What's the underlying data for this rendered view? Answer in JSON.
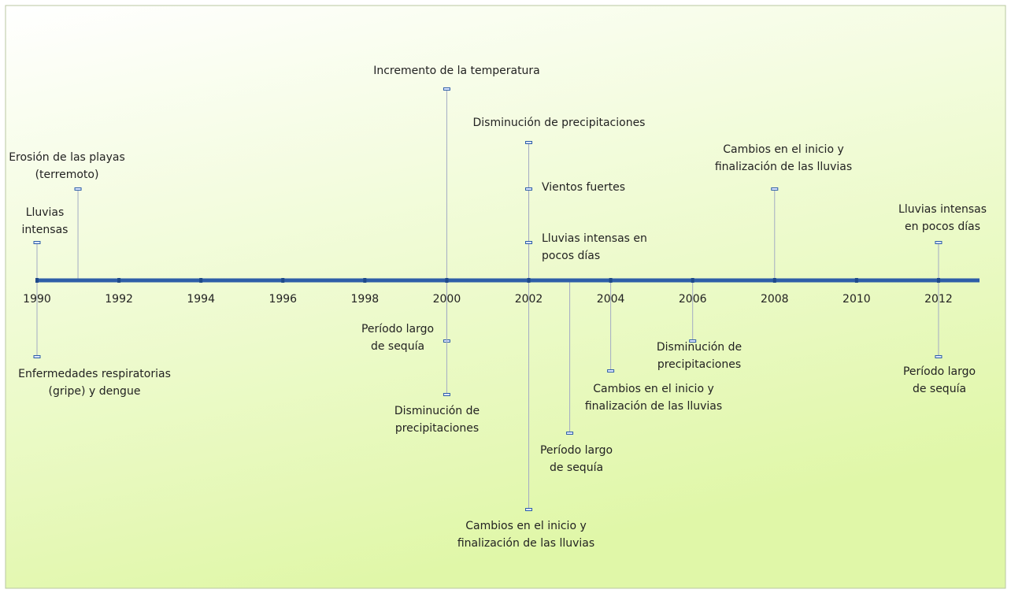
{
  "chart_data": {
    "type": "timeline",
    "xlim": [
      1990,
      2013
    ],
    "xticks": [
      1990,
      1992,
      1994,
      1996,
      1998,
      2000,
      2002,
      2004,
      2006,
      2008,
      2010,
      2012
    ],
    "color": "#2e5ea8",
    "events": [
      {
        "year": 1990,
        "label": [
          "Lluvias",
          "intensas"
        ]
      },
      {
        "year": 1991,
        "label": [
          "Erosión de las playas",
          "(terremoto)"
        ]
      },
      {
        "year": 2000,
        "label": [
          "Incremento de la temperatura"
        ]
      },
      {
        "year": 2002,
        "label": [
          "Disminución de precipitaciones"
        ]
      },
      {
        "year": 2002,
        "label": [
          "Vientos fuertes"
        ]
      },
      {
        "year": 2002,
        "label": [
          "Lluvias intensas en",
          "pocos días"
        ]
      },
      {
        "year": 2008,
        "label": [
          "Cambios en el inicio y",
          "finalización  de las lluvias"
        ]
      },
      {
        "year": 2012,
        "label": [
          "Lluvias intensas",
          "en pocos días"
        ]
      },
      {
        "year": 1990,
        "label": [
          "Enfermedades respiratorias",
          "(gripe) y dengue"
        ]
      },
      {
        "year": 2000,
        "label": [
          "Período largo",
          "de sequía"
        ]
      },
      {
        "year": 2000,
        "label": [
          "Disminución de",
          "precipitaciones"
        ]
      },
      {
        "year": 2002,
        "label": [
          "Cambios en el inicio y",
          "finalización  de las lluvias"
        ]
      },
      {
        "year": 2003,
        "label": [
          "Período largo",
          "de sequía"
        ]
      },
      {
        "year": 2004,
        "label": [
          "Cambios en el inicio y",
          "finalización  de las lluvias"
        ]
      },
      {
        "year": 2006,
        "label": [
          "Disminución de",
          "precipitaciones"
        ]
      },
      {
        "year": 2012,
        "label": [
          "Período largo",
          "de sequía"
        ]
      }
    ]
  }
}
